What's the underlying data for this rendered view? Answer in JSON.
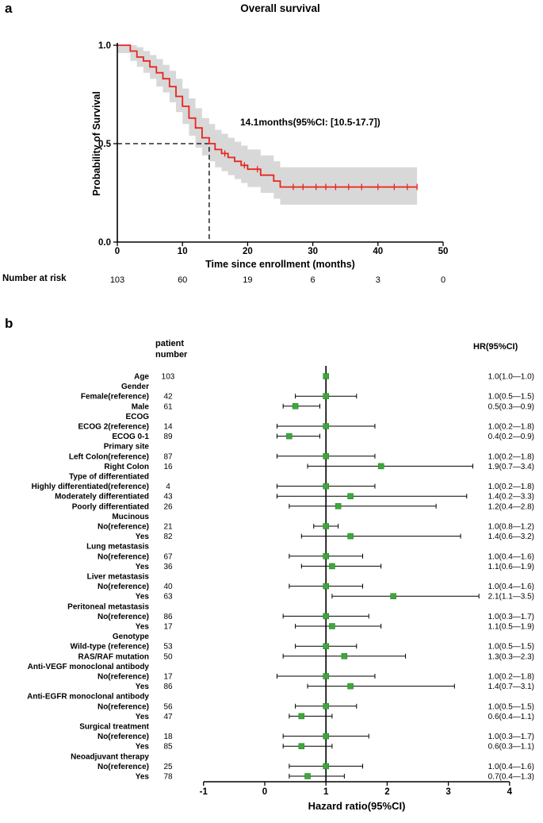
{
  "panels": {
    "a": "a",
    "b": "b"
  },
  "colors": {
    "curve_red": "#e8251f",
    "ci_band_gray": "#d8d8d8",
    "marker_green": "#3da83c",
    "axis_black": "#000000"
  },
  "chart_data": [
    {
      "type": "line",
      "subtype": "kaplan-meier-step",
      "title": "Overall survival",
      "xlabel": "Time since enrollment (months)",
      "ylabel": "Probability of Survival",
      "xlim": [
        0,
        50
      ],
      "ylim": [
        0,
        1
      ],
      "x_ticks": [
        0,
        10,
        20,
        30,
        40,
        50
      ],
      "y_ticks": [
        0,
        0.5,
        1
      ],
      "grid": false,
      "median_months": 14.1,
      "median_annotation": "14.1months(95%CI: [10.5-17.7])",
      "line_color": "#e8251f",
      "band_color": "#d8d8d8",
      "curve": {
        "t": [
          0,
          2,
          3,
          4,
          5,
          6,
          7,
          8,
          9,
          10,
          11,
          12,
          13,
          14.1,
          15,
          16,
          17,
          18,
          19,
          20,
          22,
          24,
          25,
          46
        ],
        "s": [
          1.0,
          0.97,
          0.94,
          0.92,
          0.89,
          0.86,
          0.83,
          0.79,
          0.74,
          0.69,
          0.63,
          0.58,
          0.53,
          0.5,
          0.47,
          0.45,
          0.43,
          0.41,
          0.39,
          0.37,
          0.34,
          0.31,
          0.28,
          0.28
        ],
        "upper": [
          1.0,
          1.0,
          0.99,
          0.97,
          0.95,
          0.93,
          0.9,
          0.87,
          0.83,
          0.78,
          0.73,
          0.68,
          0.63,
          0.6,
          0.57,
          0.55,
          0.53,
          0.51,
          0.49,
          0.47,
          0.44,
          0.41,
          0.38,
          0.38
        ],
        "lower": [
          0.96,
          0.92,
          0.89,
          0.86,
          0.83,
          0.79,
          0.76,
          0.71,
          0.66,
          0.6,
          0.54,
          0.48,
          0.44,
          0.41,
          0.38,
          0.36,
          0.34,
          0.32,
          0.3,
          0.28,
          0.25,
          0.22,
          0.19,
          0.19
        ]
      },
      "censor_times": [
        16.5,
        19.5,
        21.5,
        27,
        28.5,
        30.5,
        32,
        33.5,
        35.5,
        37.5,
        40,
        42.5,
        44.5,
        46
      ],
      "number_at_risk": {
        "label": "Number at risk",
        "times": [
          0,
          10,
          20,
          30,
          40,
          50
        ],
        "values": [
          103,
          60,
          19,
          6,
          3,
          0
        ]
      }
    },
    {
      "type": "scatter",
      "subtype": "forest-plot",
      "xlabel": "Hazard ratio(95%CI)",
      "xlim": [
        -1,
        4
      ],
      "x_ticks": [
        -1,
        0,
        1,
        2,
        3,
        4
      ],
      "reference_line": 1,
      "marker_color": "#3da83c",
      "columns": {
        "patient": "patient\nnumber",
        "hr": "HR(95%CI)"
      },
      "rows": [
        {
          "label": "Age",
          "n": 103,
          "hr": 1.0,
          "lo": 1.0,
          "hi": 1.0,
          "text": "1.0(1.0—1.0)"
        },
        {
          "label": "Gender"
        },
        {
          "label": "Female(reference)",
          "n": 42,
          "hr": 1.0,
          "lo": 0.5,
          "hi": 1.5,
          "text": "1.0(0.5—1.5)"
        },
        {
          "label": "Male",
          "n": 61,
          "hr": 0.5,
          "lo": 0.3,
          "hi": 0.9,
          "text": "0.5(0.3—0.9)"
        },
        {
          "label": "ECOG"
        },
        {
          "label": "ECOG 2(reference)",
          "n": 14,
          "hr": 1.0,
          "lo": 0.2,
          "hi": 1.8,
          "text": "1.0(0.2—1.8)"
        },
        {
          "label": "ECOG 0-1",
          "n": 89,
          "hr": 0.4,
          "lo": 0.2,
          "hi": 0.9,
          "text": "0.4(0.2—0.9)"
        },
        {
          "label": "Primary site"
        },
        {
          "label": "Left Colon(reference)",
          "n": 87,
          "hr": 1.0,
          "lo": 0.2,
          "hi": 1.8,
          "text": "1.0(0.2—1.8)"
        },
        {
          "label": "Right Colon",
          "n": 16,
          "hr": 1.9,
          "lo": 0.7,
          "hi": 3.4,
          "text": "1.9(0.7—3.4)"
        },
        {
          "label": "Type of differentiated"
        },
        {
          "label": "Highly differentiated(reference)",
          "n": 4,
          "hr": 1.0,
          "lo": 0.2,
          "hi": 1.8,
          "text": "1.0(0.2—1.8)"
        },
        {
          "label": "Moderately differentiated",
          "n": 43,
          "hr": 1.4,
          "lo": 0.2,
          "hi": 3.3,
          "text": "1.4(0.2—3.3)"
        },
        {
          "label": "Poorly differentiated",
          "n": 26,
          "hr": 1.2,
          "lo": 0.4,
          "hi": 2.8,
          "text": "1.2(0.4—2.8)"
        },
        {
          "label": "Mucinous"
        },
        {
          "label": "No(reference)",
          "n": 21,
          "hr": 1.0,
          "lo": 0.8,
          "hi": 1.2,
          "text": "1.0(0.8—1.2)"
        },
        {
          "label": "Yes",
          "n": 82,
          "hr": 1.4,
          "lo": 0.6,
          "hi": 3.2,
          "text": "1.4(0.6—3.2)"
        },
        {
          "label": "Lung metastasis"
        },
        {
          "label": "No(reference)",
          "n": 67,
          "hr": 1.0,
          "lo": 0.4,
          "hi": 1.6,
          "text": "1.0(0.4—1.6)"
        },
        {
          "label": "Yes",
          "n": 36,
          "hr": 1.1,
          "lo": 0.6,
          "hi": 1.9,
          "text": "1.1(0.6—1.9)"
        },
        {
          "label": "Liver metastasis"
        },
        {
          "label": "No(reference)",
          "n": 40,
          "hr": 1.0,
          "lo": 0.4,
          "hi": 1.6,
          "text": "1.0(0.4—1.6)"
        },
        {
          "label": "Yes",
          "n": 63,
          "hr": 2.1,
          "lo": 1.1,
          "hi": 3.5,
          "text": "2.1(1.1—3.5)"
        },
        {
          "label": "Peritoneal metastasis"
        },
        {
          "label": "No(reference)",
          "n": 86,
          "hr": 1.0,
          "lo": 0.3,
          "hi": 1.7,
          "text": "1.0(0.3—1.7)"
        },
        {
          "label": "Yes",
          "n": 17,
          "hr": 1.1,
          "lo": 0.5,
          "hi": 1.9,
          "text": "1.1(0.5—1.9)"
        },
        {
          "label": "Genotype"
        },
        {
          "label": "Wild-type (reference)",
          "n": 53,
          "hr": 1.0,
          "lo": 0.5,
          "hi": 1.5,
          "text": "1.0(0.5—1.5)"
        },
        {
          "label": "RAS/RAF mutation",
          "n": 50,
          "hr": 1.3,
          "lo": 0.3,
          "hi": 2.3,
          "text": "1.3(0.3—2.3)"
        },
        {
          "label": "Anti-VEGF monoclonal antibody"
        },
        {
          "label": "No(reference)",
          "n": 17,
          "hr": 1.0,
          "lo": 0.2,
          "hi": 1.8,
          "text": "1.0(0.2—1.8)"
        },
        {
          "label": "Yes",
          "n": 86,
          "hr": 1.4,
          "lo": 0.7,
          "hi": 3.1,
          "text": "1.4(0.7—3.1)"
        },
        {
          "label": "Anti-EGFR monoclonal antibody"
        },
        {
          "label": "No(reference)",
          "n": 56,
          "hr": 1.0,
          "lo": 0.5,
          "hi": 1.5,
          "text": "1.0(0.5—1.5)"
        },
        {
          "label": "Yes",
          "n": 47,
          "hr": 0.6,
          "lo": 0.4,
          "hi": 1.1,
          "text": "0.6(0.4—1.1)"
        },
        {
          "label": "Surgical treatment"
        },
        {
          "label": "No(reference)",
          "n": 18,
          "hr": 1.0,
          "lo": 0.3,
          "hi": 1.7,
          "text": "1.0(0.3—1.7)"
        },
        {
          "label": "Yes",
          "n": 85,
          "hr": 0.6,
          "lo": 0.3,
          "hi": 1.1,
          "text": "0.6(0.3—1.1)"
        },
        {
          "label": "Neoadjuvant therapy"
        },
        {
          "label": "No(reference)",
          "n": 25,
          "hr": 1.0,
          "lo": 0.4,
          "hi": 1.6,
          "text": "1.0(0.4—1.6)"
        },
        {
          "label": "Yes",
          "n": 78,
          "hr": 0.7,
          "lo": 0.4,
          "hi": 1.3,
          "text": "0.7(0.4—1.3)"
        }
      ]
    }
  ]
}
